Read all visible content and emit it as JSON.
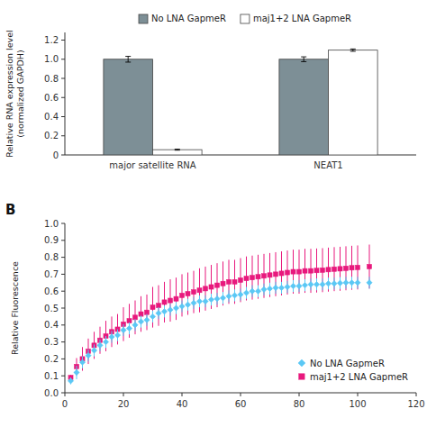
{
  "chart_data": [
    {
      "type": "bar",
      "categories": [
        "major satellite RNA",
        "NEAT1"
      ],
      "series": [
        {
          "name": "No LNA GapmeR",
          "color": "#7d8f96",
          "values": [
            1.0,
            1.0
          ],
          "errors": [
            0.03,
            0.025
          ]
        },
        {
          "name": "maj1+2 LNA GapmeR",
          "color": "#ffffff",
          "values": [
            0.055,
            1.095
          ],
          "errors": [
            0.005,
            0.012
          ]
        }
      ],
      "ylabel": "Relative RNA expression level\n(normalized GAPDH)",
      "ylim": [
        0,
        1.28
      ],
      "yticks": [
        0,
        0.2,
        0.4,
        0.6,
        0.8,
        {
          "value": 1.0,
          "label": "1.0"
        },
        1.2
      ],
      "grid": false,
      "legend": "top"
    },
    {
      "type": "scatter",
      "annotations": [
        "B"
      ],
      "x": [
        2,
        4,
        6,
        8,
        10,
        12,
        14,
        16,
        18,
        20,
        22,
        24,
        26,
        28,
        30,
        32,
        34,
        36,
        38,
        40,
        42,
        44,
        46,
        48,
        50,
        52,
        54,
        56,
        58,
        60,
        62,
        64,
        66,
        68,
        70,
        72,
        74,
        76,
        78,
        80,
        82,
        84,
        86,
        88,
        90,
        92,
        94,
        96,
        98,
        100,
        104
      ],
      "series": [
        {
          "name": "No LNA GapmeR",
          "color": "#5bc8f5",
          "marker": "diamond",
          "values": [
            0.07,
            0.12,
            0.18,
            0.22,
            0.25,
            0.28,
            0.3,
            0.33,
            0.34,
            0.37,
            0.38,
            0.4,
            0.42,
            0.43,
            0.45,
            0.47,
            0.48,
            0.49,
            0.5,
            0.51,
            0.52,
            0.53,
            0.54,
            0.54,
            0.55,
            0.555,
            0.56,
            0.57,
            0.575,
            0.58,
            0.59,
            0.6,
            0.6,
            0.61,
            0.615,
            0.62,
            0.62,
            0.625,
            0.63,
            0.63,
            0.635,
            0.64,
            0.64,
            0.64,
            0.645,
            0.645,
            0.648,
            0.65,
            0.65,
            0.65,
            0.65
          ],
          "errors": [
            0.02,
            0.04,
            0.035,
            0.035,
            0.035,
            0.035,
            0.035,
            0.035,
            0.035,
            0.035,
            0.035,
            0.035,
            0.035,
            0.035,
            0.035,
            0.035,
            0.035,
            0.035,
            0.035,
            0.035,
            0.035,
            0.035,
            0.035,
            0.035,
            0.035,
            0.035,
            0.035,
            0.035,
            0.035,
            0.035,
            0.035,
            0.035,
            0.035,
            0.035,
            0.035,
            0.035,
            0.035,
            0.035,
            0.035,
            0.035,
            0.035,
            0.035,
            0.035,
            0.035,
            0.035,
            0.035,
            0.035,
            0.035,
            0.035,
            0.035,
            0.035
          ]
        },
        {
          "name": "maj1+2 LNA GapmeR",
          "color": "#e8197d",
          "marker": "square",
          "values": [
            0.09,
            0.155,
            0.2,
            0.245,
            0.28,
            0.31,
            0.335,
            0.36,
            0.375,
            0.405,
            0.425,
            0.445,
            0.465,
            0.475,
            0.505,
            0.515,
            0.535,
            0.545,
            0.555,
            0.575,
            0.585,
            0.595,
            0.605,
            0.615,
            0.625,
            0.635,
            0.645,
            0.655,
            0.655,
            0.665,
            0.675,
            0.68,
            0.685,
            0.69,
            0.695,
            0.7,
            0.705,
            0.71,
            0.715,
            0.715,
            0.72,
            0.72,
            0.722,
            0.724,
            0.727,
            0.73,
            0.732,
            0.735,
            0.738,
            0.74,
            0.745
          ],
          "errors": [
            0.015,
            0.05,
            0.07,
            0.075,
            0.08,
            0.08,
            0.09,
            0.09,
            0.09,
            0.1,
            0.1,
            0.1,
            0.105,
            0.105,
            0.12,
            0.12,
            0.12,
            0.125,
            0.125,
            0.125,
            0.125,
            0.125,
            0.13,
            0.13,
            0.13,
            0.13,
            0.13,
            0.13,
            0.13,
            0.13,
            0.13,
            0.13,
            0.13,
            0.13,
            0.13,
            0.13,
            0.13,
            0.13,
            0.13,
            0.13,
            0.13,
            0.13,
            0.13,
            0.13,
            0.13,
            0.13,
            0.13,
            0.13,
            0.13,
            0.13,
            0.13
          ]
        }
      ],
      "ylabel": "Relative Fluorescence",
      "xlim": [
        0,
        120
      ],
      "xticks": [
        0,
        20,
        40,
        60,
        80,
        100,
        120
      ],
      "ylim": [
        0,
        1.0
      ],
      "yticks": [
        {
          "value": 0,
          "label": "0.0"
        },
        0.1,
        0.2,
        0.3,
        0.4,
        0.5,
        0.6,
        0.7,
        0.8,
        0.9,
        {
          "value": 1.0,
          "label": "1.0"
        }
      ],
      "grid": false,
      "legend": "lower right"
    }
  ]
}
